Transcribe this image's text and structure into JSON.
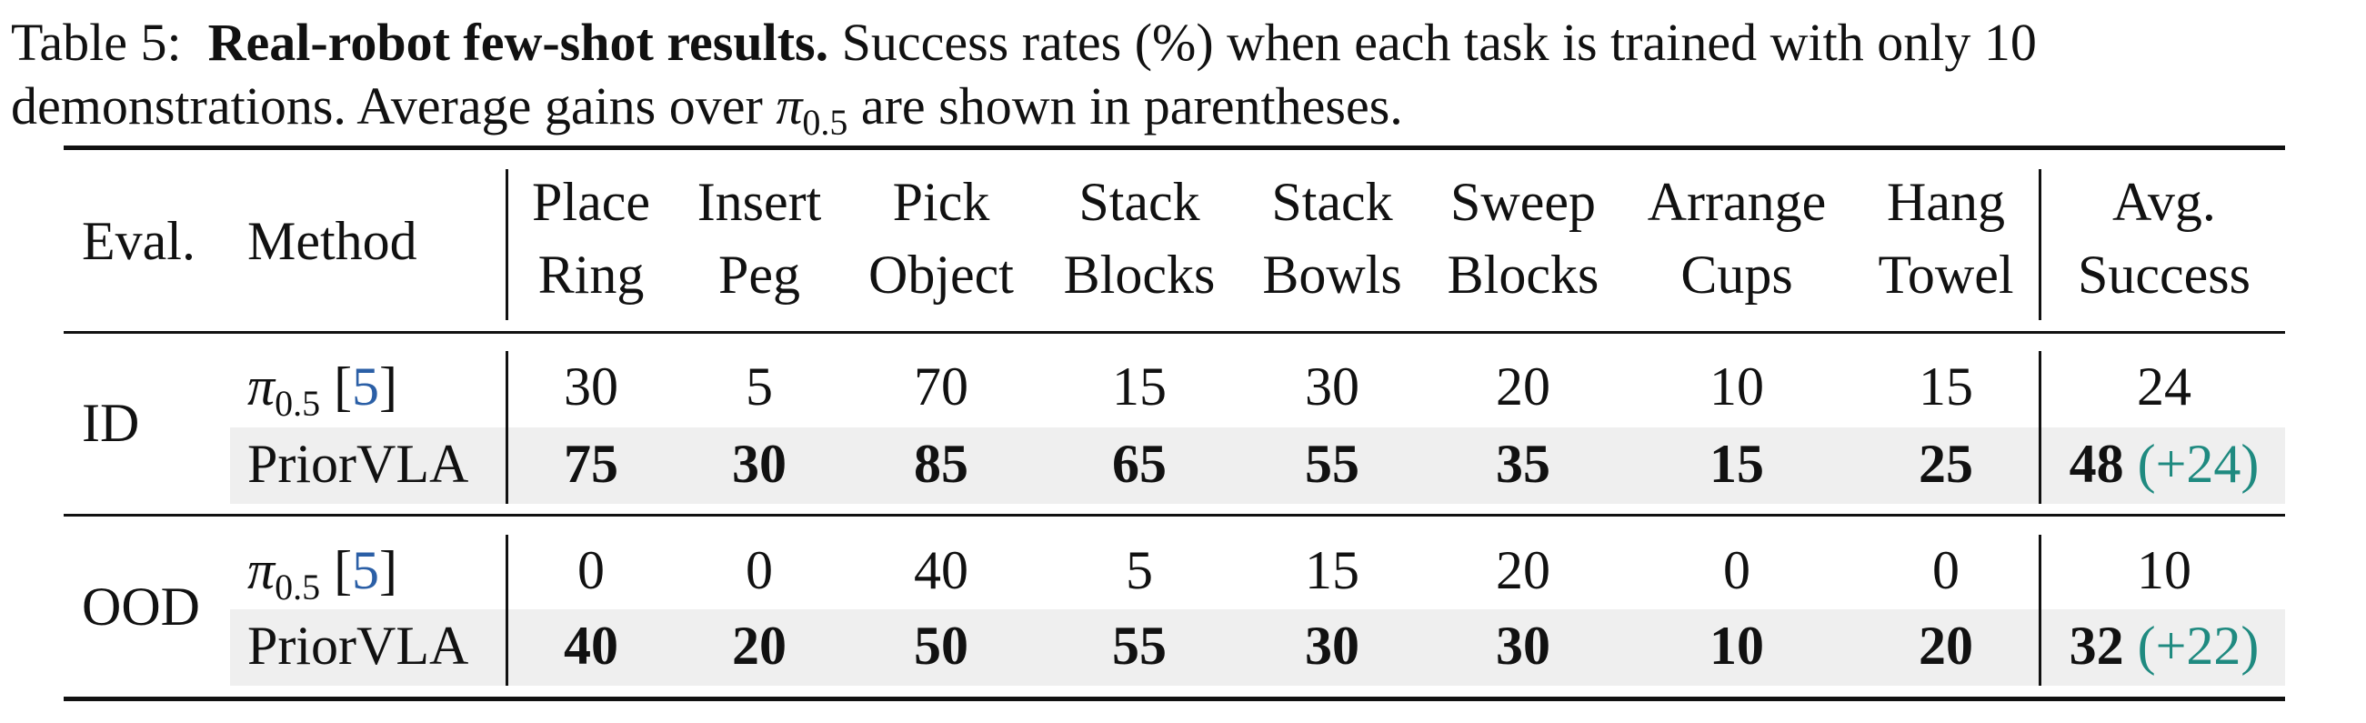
{
  "caption": {
    "label": "Table 5:",
    "bold": "Real-robot few-shot results.",
    "text1": "Success rates (%) when each task is trained with only 10",
    "text2": "demonstrations. Average gains over",
    "pi": "π",
    "pi_sub": "0.5",
    "text3": "are shown in parentheses."
  },
  "table": {
    "headers": {
      "eval": "Eval.",
      "method": "Method",
      "tasks": [
        {
          "l1": "Place",
          "l2": "Ring"
        },
        {
          "l1": "Insert",
          "l2": "Peg"
        },
        {
          "l1": "Pick",
          "l2": "Object"
        },
        {
          "l1": "Stack",
          "l2": "Blocks"
        },
        {
          "l1": "Stack",
          "l2": "Bowls"
        },
        {
          "l1": "Sweep",
          "l2": "Blocks"
        },
        {
          "l1": "Arrange",
          "l2": "Cups"
        },
        {
          "l1": "Hang",
          "l2": "Towel"
        }
      ],
      "avg": {
        "l1": "Avg.",
        "l2": "Success"
      }
    },
    "groups": [
      {
        "eval": "ID",
        "baseline": {
          "pi": "π",
          "sub": "0.5",
          "cite_open": "[",
          "cite": "5",
          "cite_close": "]",
          "values": [
            "30",
            "5",
            "70",
            "15",
            "30",
            "20",
            "10",
            "15"
          ],
          "avg": "24"
        },
        "ours": {
          "method": "PriorVLA",
          "values": [
            "75",
            "30",
            "85",
            "65",
            "55",
            "35",
            "15",
            "25"
          ],
          "avg": "48",
          "gain": "(+24)"
        }
      },
      {
        "eval": "OOD",
        "baseline": {
          "pi": "π",
          "sub": "0.5",
          "cite_open": "[",
          "cite": "5",
          "cite_close": "]",
          "values": [
            "0",
            "0",
            "40",
            "5",
            "15",
            "20",
            "0",
            "0"
          ],
          "avg": "10"
        },
        "ours": {
          "method": "PriorVLA",
          "values": [
            "40",
            "20",
            "50",
            "55",
            "30",
            "30",
            "10",
            "20"
          ],
          "avg": "32",
          "gain": "(+22)"
        }
      }
    ]
  }
}
